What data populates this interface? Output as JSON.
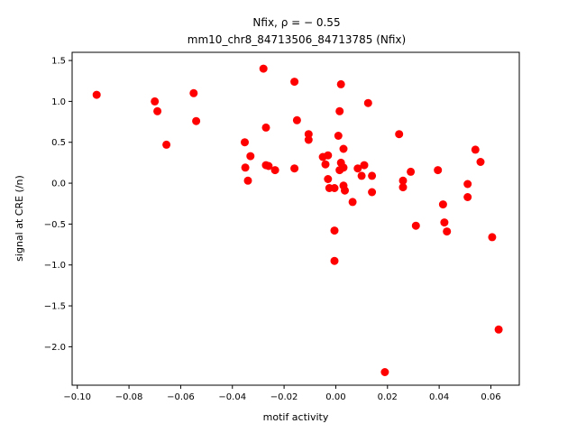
{
  "chart_data": {
    "type": "scatter",
    "title_line1": "Nfix, ρ = − 0.55",
    "title_line2": "mm10_chr8_84713506_84713785 (Nfix)",
    "xlabel": "motif activity",
    "ylabel": "signal at CRE (/n)",
    "xlim": [
      -0.102,
      0.071
    ],
    "ylim": [
      -2.47,
      1.6
    ],
    "xticks": [
      -0.1,
      -0.08,
      -0.06,
      -0.04,
      -0.02,
      0.0,
      0.02,
      0.04,
      0.06
    ],
    "xtick_labels": [
      "−0.10",
      "−0.08",
      "−0.06",
      "−0.04",
      "−0.02",
      "0.00",
      "0.02",
      "0.04",
      "0.06"
    ],
    "yticks": [
      1.5,
      1.0,
      0.5,
      0.0,
      -0.5,
      -1.0,
      -1.5,
      -2.0
    ],
    "ytick_labels": [
      "1.5",
      "1.0",
      "0.5",
      "0.0",
      "−0.5",
      "−1.0",
      "−1.5",
      "−2.0"
    ],
    "marker_color": "#ff0000",
    "grid": false,
    "points": [
      [
        -0.0925,
        1.08
      ],
      [
        -0.07,
        1.0
      ],
      [
        -0.069,
        0.88
      ],
      [
        -0.0655,
        0.47
      ],
      [
        -0.055,
        1.1
      ],
      [
        -0.054,
        0.76
      ],
      [
        -0.0352,
        0.5
      ],
      [
        -0.035,
        0.19
      ],
      [
        -0.034,
        0.03
      ],
      [
        -0.033,
        0.33
      ],
      [
        -0.028,
        1.4
      ],
      [
        -0.027,
        0.68
      ],
      [
        -0.027,
        0.22
      ],
      [
        -0.026,
        0.21
      ],
      [
        -0.0235,
        0.16
      ],
      [
        -0.016,
        1.24
      ],
      [
        -0.016,
        0.18
      ],
      [
        -0.015,
        0.77
      ],
      [
        -0.0105,
        0.6
      ],
      [
        -0.0105,
        0.53
      ],
      [
        -0.005,
        0.32
      ],
      [
        -0.004,
        0.23
      ],
      [
        -0.003,
        0.34
      ],
      [
        -0.003,
        0.05
      ],
      [
        -0.0025,
        -0.06
      ],
      [
        -0.0005,
        -0.06
      ],
      [
        -0.0005,
        -0.58
      ],
      [
        -0.0005,
        -0.95
      ],
      [
        0.001,
        0.58
      ],
      [
        0.0015,
        0.88
      ],
      [
        0.002,
        1.21
      ],
      [
        0.0015,
        0.16
      ],
      [
        0.002,
        0.25
      ],
      [
        0.003,
        0.42
      ],
      [
        0.003,
        0.19
      ],
      [
        0.003,
        -0.03
      ],
      [
        0.0035,
        -0.09
      ],
      [
        0.0065,
        -0.23
      ],
      [
        0.0085,
        0.18
      ],
      [
        0.01,
        0.09
      ],
      [
        0.011,
        0.22
      ],
      [
        0.0125,
        0.98
      ],
      [
        0.014,
        0.09
      ],
      [
        0.014,
        -0.11
      ],
      [
        0.019,
        -2.31
      ],
      [
        0.0245,
        0.6
      ],
      [
        0.026,
        0.03
      ],
      [
        0.026,
        -0.05
      ],
      [
        0.029,
        0.14
      ],
      [
        0.031,
        -0.52
      ],
      [
        0.0395,
        0.16
      ],
      [
        0.0415,
        -0.26
      ],
      [
        0.042,
        -0.48
      ],
      [
        0.043,
        -0.59
      ],
      [
        0.051,
        -0.01
      ],
      [
        0.051,
        -0.17
      ],
      [
        0.054,
        0.41
      ],
      [
        0.056,
        0.26
      ],
      [
        0.0605,
        -0.66
      ],
      [
        0.063,
        -1.79
      ]
    ]
  }
}
